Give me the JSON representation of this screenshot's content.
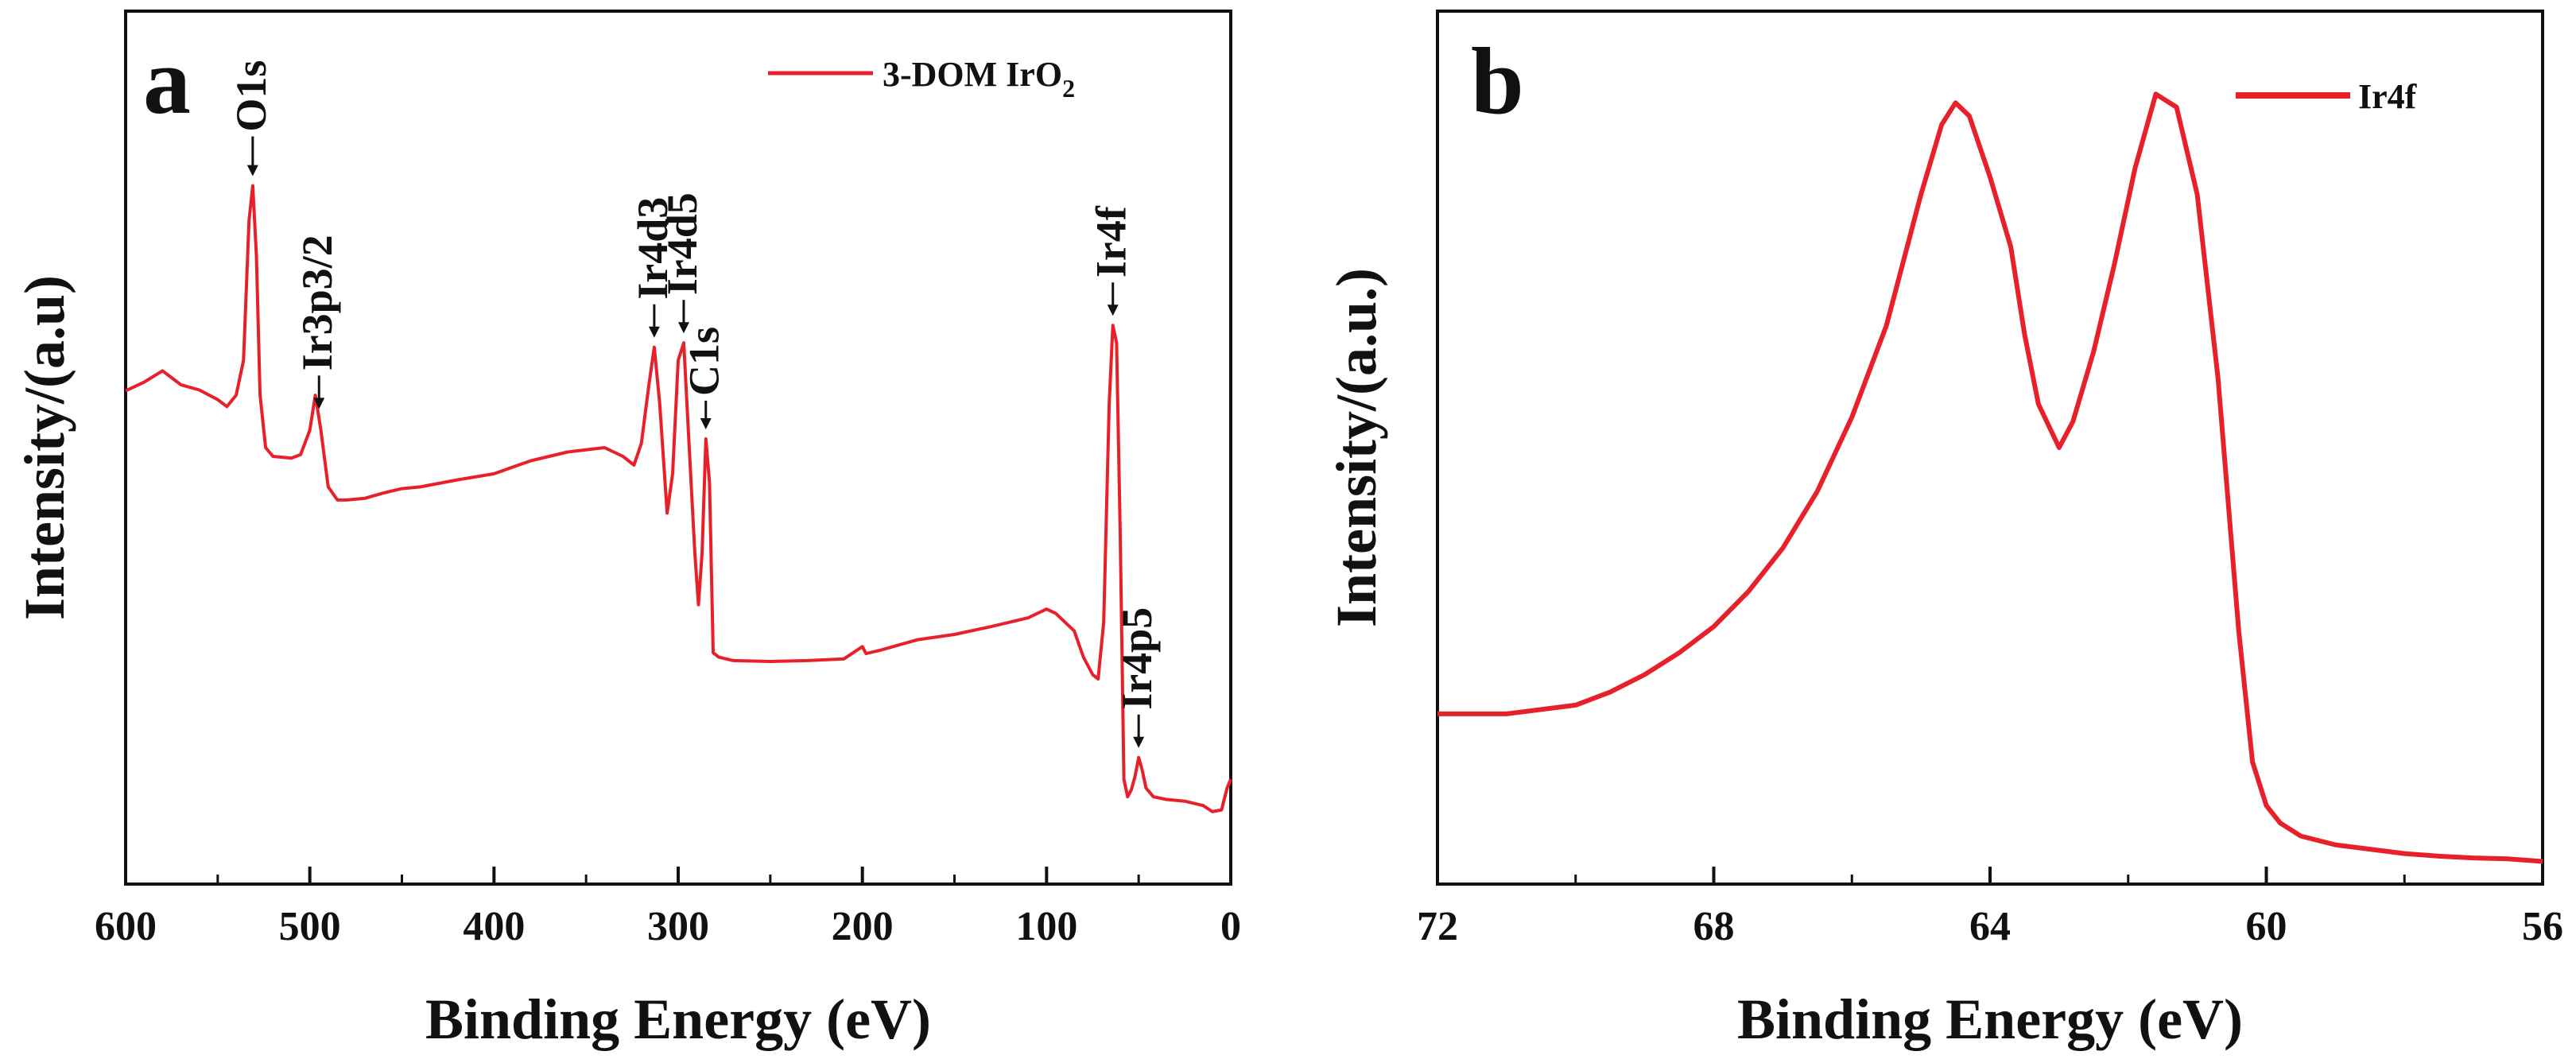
{
  "colors": {
    "series": "#e8202a",
    "axis": "#111111",
    "background": "#ffffff"
  },
  "chart_data": [
    {
      "type": "line",
      "panel_letter": "a",
      "xlabel": "Binding Energy (eV)",
      "ylabel": "Intensity/(a.u)",
      "xlim": [
        600,
        0
      ],
      "ylim": [
        0,
        100
      ],
      "x_ticks": [
        "600",
        "500",
        "400",
        "300",
        "200",
        "100",
        "0"
      ],
      "x_tick_values": [
        600,
        500,
        400,
        300,
        200,
        100,
        0
      ],
      "y_ticks_labeled": false,
      "legend": {
        "position": "top-right",
        "label_main": "3-DOM IrO",
        "label_sub": "2"
      },
      "series": [
        {
          "name": "3-DOM IrO2",
          "x": [
            600,
            590,
            580,
            570,
            560,
            550,
            545,
            540,
            536,
            533,
            531,
            529,
            527,
            524,
            520,
            510,
            505,
            500,
            497,
            494,
            490,
            485,
            480,
            470,
            460,
            450,
            440,
            420,
            400,
            380,
            360,
            340,
            330,
            324,
            320,
            316,
            313,
            310,
            306,
            303,
            300,
            297,
            294,
            291,
            289,
            287,
            285,
            283,
            281,
            278,
            270,
            250,
            230,
            210,
            200,
            198,
            190,
            170,
            150,
            130,
            110,
            100,
            95,
            85,
            80,
            75,
            72,
            69,
            66,
            64,
            62,
            60,
            58,
            56,
            54,
            52,
            50,
            48,
            46,
            42,
            35,
            25,
            15,
            10,
            5,
            2,
            0
          ],
          "y": [
            56.5,
            57.5,
            58.8,
            57.2,
            56.6,
            55.5,
            54.7,
            56.0,
            60.0,
            76.0,
            80.0,
            72.0,
            56.0,
            50.0,
            49.0,
            48.8,
            49.2,
            52.0,
            56.0,
            52.0,
            45.5,
            44.0,
            44.0,
            44.2,
            44.8,
            45.3,
            45.5,
            46.3,
            47.0,
            48.5,
            49.5,
            50.0,
            49.0,
            48.0,
            50.5,
            57.0,
            61.5,
            55.0,
            42.5,
            47.0,
            60.0,
            62.0,
            50.0,
            38.0,
            32.0,
            38.0,
            51.0,
            46.0,
            26.5,
            26.0,
            25.6,
            25.5,
            25.6,
            25.8,
            27.2,
            26.4,
            26.8,
            28.0,
            28.6,
            29.5,
            30.5,
            31.5,
            31.0,
            29.0,
            26.0,
            24.0,
            23.5,
            30.0,
            55.0,
            64.0,
            62.0,
            40.0,
            12.0,
            10.0,
            10.8,
            12.3,
            14.5,
            13.0,
            11.0,
            10.0,
            9.7,
            9.5,
            9.0,
            8.3,
            8.5,
            11.0,
            12.0
          ]
        }
      ],
      "annotations": [
        {
          "text": "O1s",
          "x": 531
        },
        {
          "text": "Ir3p3/2",
          "x": 495
        },
        {
          "text": "Ir4d3",
          "x": 313
        },
        {
          "text": "Ir4d5",
          "x": 297
        },
        {
          "text": "C1s",
          "x": 285
        },
        {
          "text": "Ir4f",
          "x": 64
        },
        {
          "text": "Ir4p5",
          "x": 50
        }
      ]
    },
    {
      "type": "line",
      "panel_letter": "b",
      "xlabel": "Binding Energy (eV)",
      "ylabel": "Intensity/(a.u.)",
      "xlim": [
        72,
        56
      ],
      "ylim": [
        0,
        100
      ],
      "x_ticks": [
        "72",
        "68",
        "64",
        "60",
        "56"
      ],
      "x_tick_values": [
        72,
        68,
        64,
        60,
        56
      ],
      "y_ticks_labeled": false,
      "legend": {
        "position": "top-right",
        "label": "Ir4f"
      },
      "series": [
        {
          "name": "Ir4f",
          "x": [
            72,
            71,
            70,
            69.5,
            69,
            68.5,
            68,
            67.5,
            67,
            66.5,
            66,
            65.5,
            65.3,
            65.0,
            64.7,
            64.5,
            64.3,
            64.0,
            63.7,
            63.5,
            63.3,
            63.0,
            62.8,
            62.5,
            62.2,
            61.9,
            61.6,
            61.3,
            61.0,
            60.7,
            60.4,
            60.2,
            60.0,
            59.8,
            59.5,
            59.0,
            58.5,
            58.0,
            57.5,
            57.0,
            56.5,
            56.0
          ],
          "y": [
            19.5,
            19.5,
            20.5,
            22.0,
            24.0,
            26.5,
            29.5,
            33.5,
            38.5,
            45.0,
            53.5,
            64.0,
            70.0,
            79.0,
            87.0,
            89.5,
            88.0,
            81.0,
            73.0,
            63.0,
            55.0,
            50.0,
            53.0,
            61.0,
            71.0,
            82.0,
            90.5,
            89.0,
            79.0,
            58.0,
            29.0,
            14.0,
            9.0,
            7.0,
            5.5,
            4.5,
            4.0,
            3.5,
            3.2,
            3.0,
            2.9,
            2.6
          ]
        }
      ]
    }
  ]
}
